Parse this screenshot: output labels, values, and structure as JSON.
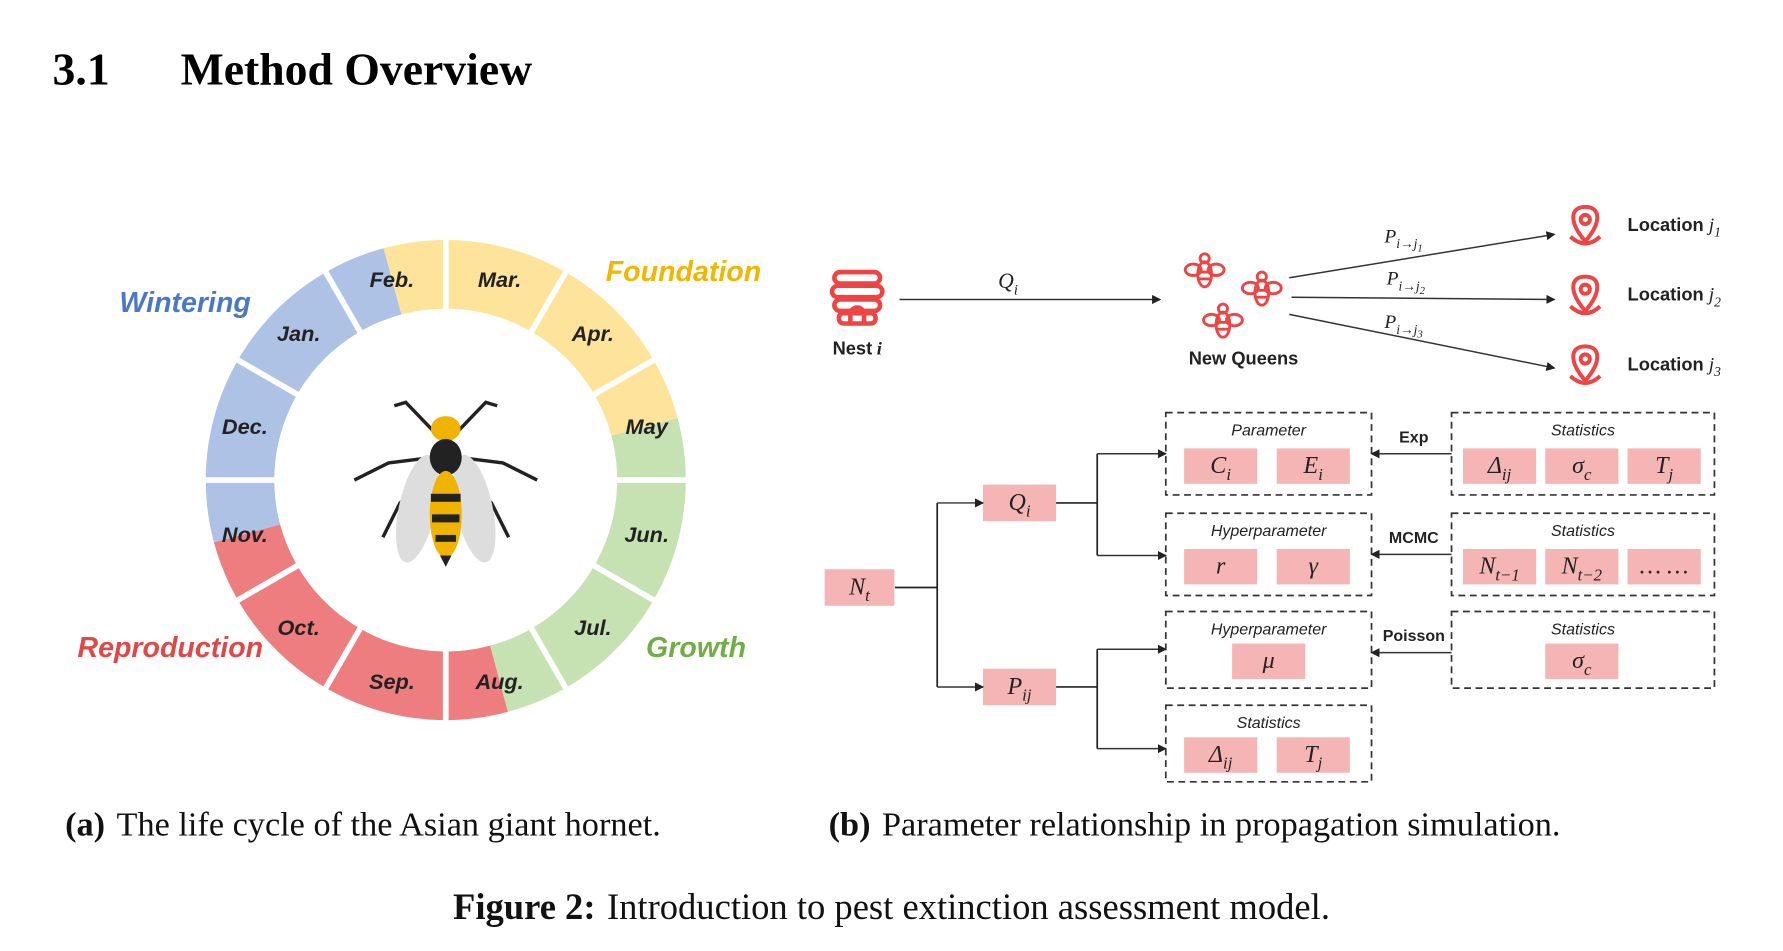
{
  "section": {
    "number": "3.1",
    "title": "Method Overview"
  },
  "lifecycle": {
    "months": [
      "Mar.",
      "Apr.",
      "May",
      "Jun.",
      "Jul.",
      "Aug.",
      "Sep.",
      "Oct.",
      "Nov.",
      "Dec.",
      "Jan.",
      "Feb."
    ],
    "phases": [
      "Foundation",
      "Growth",
      "Reproduction",
      "Wintering"
    ]
  },
  "propagation": {
    "nest": {
      "label": "Nest",
      "var": {
        "base": "i"
      }
    },
    "queen_rate": {
      "base": "Q",
      "sub": "i"
    },
    "new_queens": "New Queens",
    "transitions": [
      {
        "prob": {
          "base": "P",
          "sub": "i→j",
          "subsub": "1"
        },
        "location": "Location",
        "var": {
          "base": "j",
          "sub": "1"
        }
      },
      {
        "prob": {
          "base": "P",
          "sub": "i→j",
          "subsub": "2"
        },
        "location": "Location",
        "var": {
          "base": "j",
          "sub": "2"
        }
      },
      {
        "prob": {
          "base": "P",
          "sub": "i→j",
          "subsub": "3"
        },
        "location": "Location",
        "var": {
          "base": "j",
          "sub": "3"
        }
      }
    ],
    "nodes": {
      "population": {
        "base": "N",
        "sub": "t"
      },
      "queens": {
        "base": "Q",
        "sub": "i"
      },
      "probability": {
        "base": "P",
        "sub": "ij"
      }
    },
    "groups": [
      {
        "title": "Parameter",
        "items": [
          {
            "base": "C",
            "sub": "i"
          },
          {
            "base": "E",
            "sub": "i"
          }
        ],
        "method": "Exp",
        "source": {
          "title": "Statistics",
          "items": [
            {
              "base": "Δ",
              "sub": "ij"
            },
            {
              "base": "σ",
              "sub": "c"
            },
            {
              "base": "T",
              "sub": "j"
            }
          ]
        }
      },
      {
        "title": "Hyperparameter",
        "items": [
          {
            "base": "r"
          },
          {
            "base": "γ"
          }
        ],
        "method": "MCMC",
        "source": {
          "title": "Statistics",
          "items": [
            {
              "base": "N",
              "sub": "t−1"
            },
            {
              "base": "N",
              "sub": "t−2"
            },
            {
              "base": "… …"
            }
          ]
        }
      },
      {
        "title": "Hyperparameter",
        "items": [
          {
            "base": "μ"
          }
        ],
        "method": "Poisson",
        "source": {
          "title": "Statistics",
          "items": [
            {
              "base": "σ",
              "sub": "c"
            }
          ]
        }
      },
      {
        "title": "Statistics",
        "items": [
          {
            "base": "Δ",
            "sub": "ij"
          },
          {
            "base": "T",
            "sub": "j"
          }
        ]
      }
    ]
  },
  "captions": {
    "a": {
      "tag": "(a)",
      "text": "The life cycle of the Asian giant hornet."
    },
    "b": {
      "tag": "(b)",
      "text": "Parameter relationship in propagation simulation."
    },
    "figure": {
      "tag": "Figure 2:",
      "text": "Introduction to pest extinction assessment model."
    }
  }
}
